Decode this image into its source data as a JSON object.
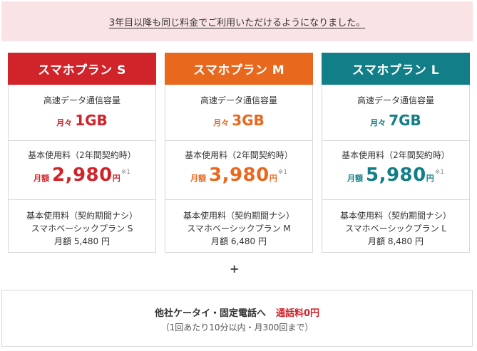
{
  "notice": "3年目以降も同じ料金でご利用いただけるようになりました。",
  "labels": {
    "data_label": "高速データ通信容量",
    "monthly_prefix": "月々",
    "price_label": "基本使用料（2年間契約時）",
    "price_prefix": "月額",
    "yen": "円",
    "note_mark": "※1",
    "no_contract_label": "基本使用料（契約期間ナシ）"
  },
  "plans": [
    {
      "name": "スマホプラン S",
      "color": "#d1232a",
      "data": "1GB",
      "price": "2,980",
      "basic_plan": "スマホベーシックプラン S",
      "no_contract_price": "月額 5,480 円"
    },
    {
      "name": "スマホプラン M",
      "color": "#e8681e",
      "data": "3GB",
      "price": "3,980",
      "basic_plan": "スマホベーシックプラン M",
      "no_contract_price": "月額 6,480 円"
    },
    {
      "name": "スマホプラン L",
      "color": "#127e87",
      "data": "7GB",
      "price": "5,980",
      "basic_plan": "スマホベーシックプラン L",
      "no_contract_price": "月額 8,480 円"
    }
  ],
  "plus": "+",
  "call": {
    "main": "他社ケータイ・固定電話へ",
    "free": "通話料0円",
    "sub": "（1回あたり10分以内・月300回まで）"
  }
}
